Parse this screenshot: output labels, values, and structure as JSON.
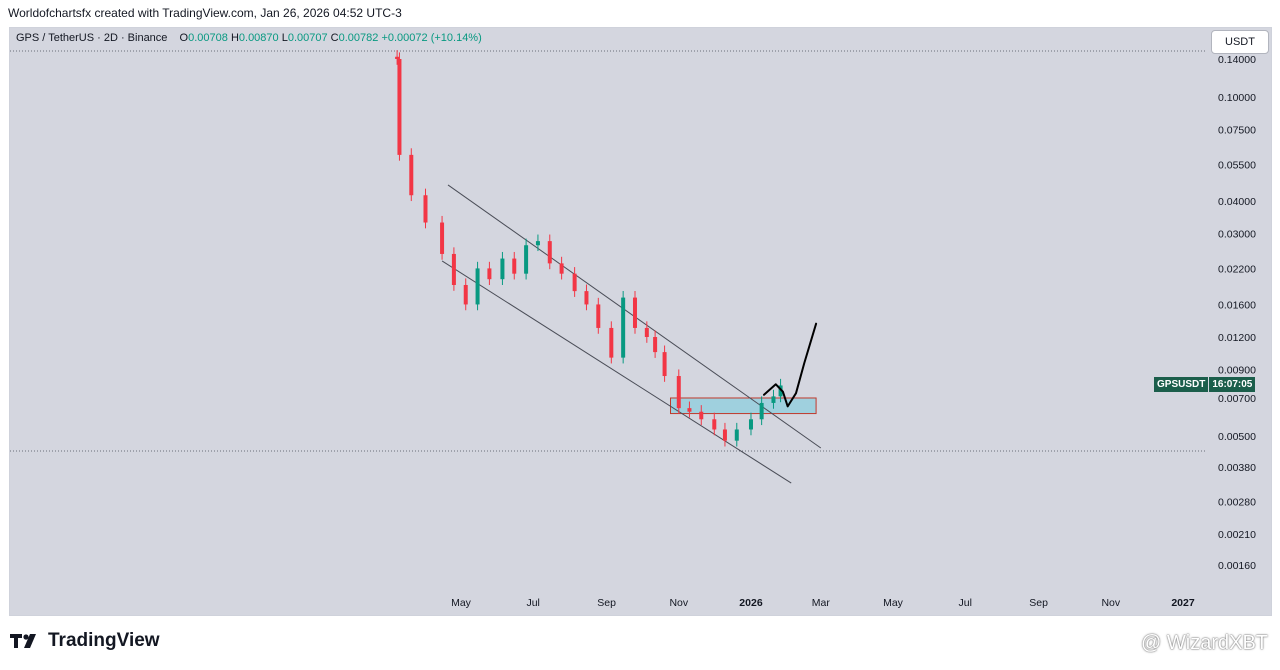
{
  "header": {
    "attribution": "Worldofchartsfx created with TradingView.com, Jan 26, 2026 04:52 UTC-3"
  },
  "legend": {
    "symbol": "GPS / TetherUS · 2D · Binance",
    "open_label": "O",
    "open": "0.00708",
    "high_label": "H",
    "high": "0.00870",
    "low_label": "L",
    "low": "0.00707",
    "close_label": "C",
    "close": "0.00782",
    "change": "+0.00072 (+10.14%)"
  },
  "currency_button": "USDT",
  "price_badge": {
    "symbol": "GPSUSDT",
    "countdown": "16:07:05"
  },
  "footer": {
    "logo_text": "TradingView",
    "watermark": "@ WizardXBT"
  },
  "colors": {
    "up": "#089981",
    "down": "#f23645",
    "box_fill": "#9fd0de",
    "box_border": "#c0392b",
    "drawing": "#000000"
  },
  "chart_data": {
    "type": "candlestick",
    "title": "",
    "y_scale": "log",
    "y_ticks": [
      "0.14000",
      "0.10000",
      "0.07500",
      "0.05500",
      "0.04000",
      "0.03000",
      "0.02200",
      "0.01600",
      "0.01200",
      "0.00900",
      "0.00700",
      "0.00500",
      "0.00380",
      "0.00280",
      "0.00210",
      "0.00160"
    ],
    "x_ticks": [
      "May",
      "Jul",
      "Sep",
      "Nov",
      "2026",
      "Mar",
      "May",
      "Jul",
      "Sep",
      "Nov",
      "2027"
    ],
    "series": [
      {
        "x": [
          "2025-03-08",
          "2025-03-10",
          "2025-03-20",
          "2025-04-01",
          "2025-04-15",
          "2025-04-25",
          "2025-05-05",
          "2025-05-15",
          "2025-05-25",
          "2025-06-05",
          "2025-06-15",
          "2025-06-25",
          "2025-07-05",
          "2025-07-15",
          "2025-07-25",
          "2025-08-05",
          "2025-08-15",
          "2025-08-25",
          "2025-09-05",
          "2025-09-15",
          "2025-09-25",
          "2025-10-05",
          "2025-10-12",
          "2025-10-20",
          "2025-11-01",
          "2025-11-10",
          "2025-11-20",
          "2025-12-01",
          "2025-12-10",
          "2025-12-20",
          "2026-01-01",
          "2026-01-10",
          "2026-01-20",
          "2026-01-26"
        ],
        "close": [
          0.14,
          0.06,
          0.042,
          0.033,
          0.025,
          0.019,
          0.016,
          0.022,
          0.02,
          0.024,
          0.021,
          0.027,
          0.028,
          0.023,
          0.021,
          0.018,
          0.016,
          0.013,
          0.01,
          0.017,
          0.013,
          0.012,
          0.0105,
          0.0085,
          0.0064,
          0.0062,
          0.0058,
          0.0053,
          0.0048,
          0.0053,
          0.0058,
          0.0067,
          0.0071,
          0.00782
        ]
      }
    ],
    "annotations": {
      "channel_upper": [
        [
          "2025-04-20",
          0.046
        ],
        [
          "2026-03-01",
          0.0045
        ]
      ],
      "channel_lower": [
        [
          "2025-04-15",
          0.0235
        ],
        [
          "2026-02-04",
          0.0033
        ]
      ],
      "zone": {
        "x_start": "2025-10-25",
        "x_end": "2026-02-25",
        "y_low": 0.0061,
        "y_high": 0.007
      },
      "projection": [
        [
          "2026-01-12",
          0.0072
        ],
        [
          "2026-01-22",
          0.0079
        ],
        [
          "2026-01-28",
          0.0074
        ],
        [
          "2026-02-01",
          0.0065
        ],
        [
          "2026-02-08",
          0.0073
        ],
        [
          "2026-02-15",
          0.0095
        ],
        [
          "2026-02-25",
          0.0135
        ]
      ]
    }
  }
}
